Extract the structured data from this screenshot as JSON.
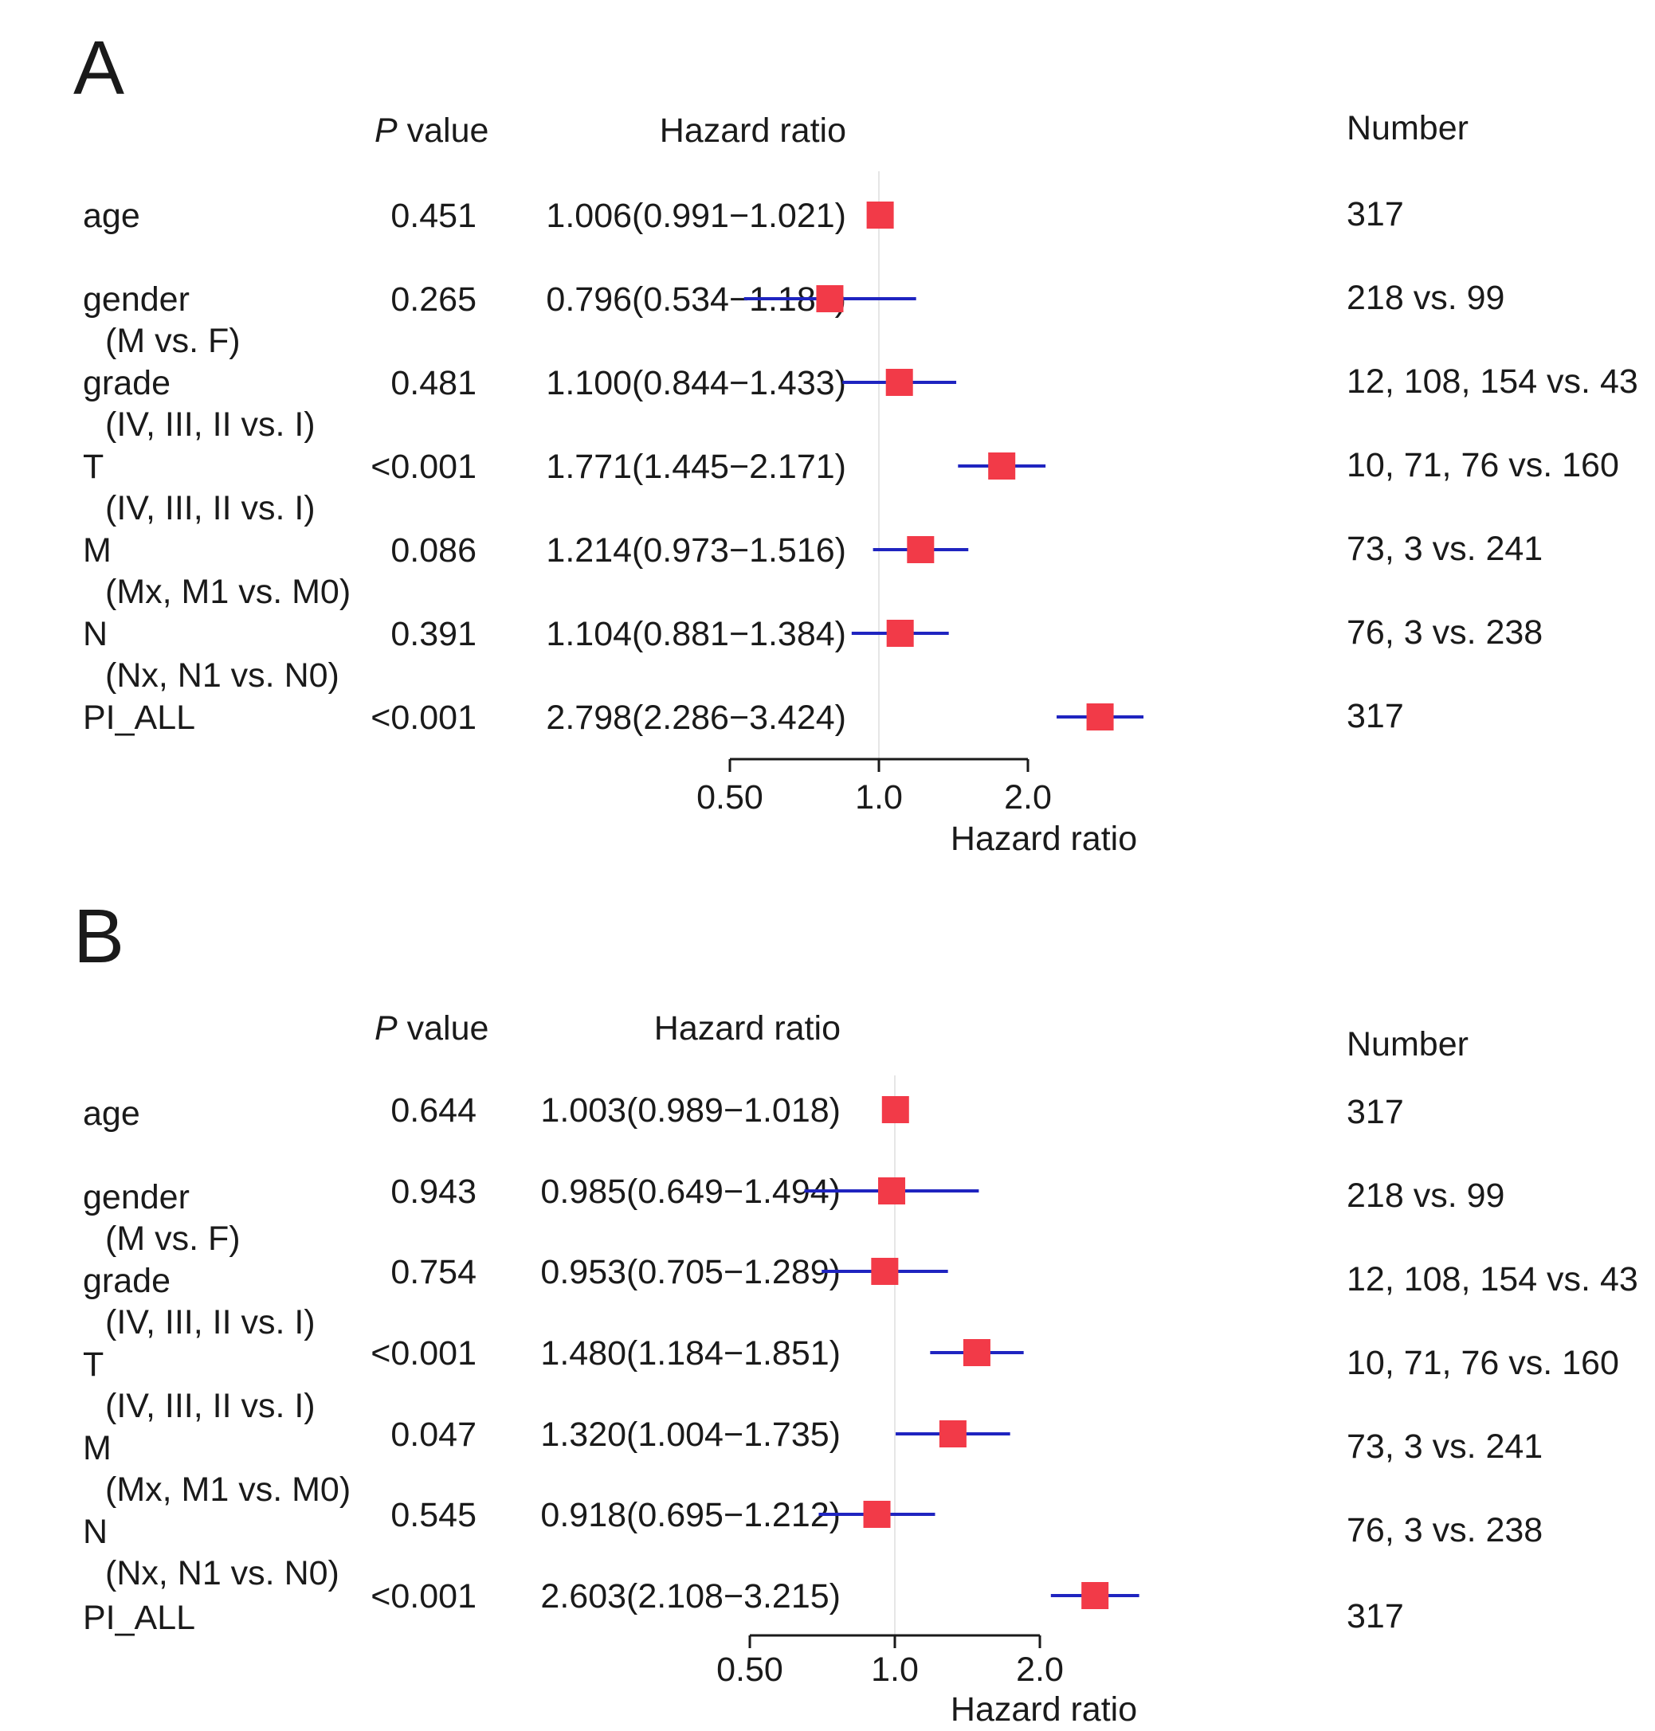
{
  "colors": {
    "marker": "#f23a48",
    "ci_line": "#1f24c0",
    "axis": "#1a1a1a",
    "ref_line": "#e6e6e6",
    "text": "#1a1a1a"
  },
  "chart_data": [
    {
      "type": "forest",
      "panel": "A",
      "columns": {
        "p_value": [
          "P",
          " value"
        ],
        "hazard_ratio": "Hazard ratio",
        "number": "Number"
      },
      "xlabel": "Hazard ratio",
      "x_scale": "log",
      "xticks": [
        0.5,
        1.0,
        2.0
      ],
      "xtick_labels": [
        "0.50",
        "1.0",
        "2.0"
      ],
      "reference": 1.0,
      "rows": [
        {
          "label": "age",
          "sublabel": "",
          "p": "0.451",
          "hr_text": "1.006(0.991−1.021)",
          "hr": 1.006,
          "lo": 0.991,
          "hi": 1.021,
          "number": "317"
        },
        {
          "label": "gender",
          "sublabel": "(M vs. F)",
          "p": "0.265",
          "hr_text": "0.796(0.534−1.189)",
          "hr": 0.796,
          "lo": 0.534,
          "hi": 1.189,
          "number": "218 vs. 99"
        },
        {
          "label": "grade",
          "sublabel": "(IV, III, II vs. I)",
          "p": "0.481",
          "hr_text": "1.100(0.844−1.433)",
          "hr": 1.1,
          "lo": 0.844,
          "hi": 1.433,
          "number": "12, 108, 154 vs. 43"
        },
        {
          "label": "T",
          "sublabel": "(IV, III, II vs. I)",
          "p": "<0.001",
          "hr_text": "1.771(1.445−2.171)",
          "hr": 1.771,
          "lo": 1.445,
          "hi": 2.171,
          "number": "10, 71, 76 vs. 160"
        },
        {
          "label": "M",
          "sublabel": "(Mx, M1 vs. M0)",
          "p": "0.086",
          "hr_text": "1.214(0.973−1.516)",
          "hr": 1.214,
          "lo": 0.973,
          "hi": 1.516,
          "number": "73, 3 vs. 241"
        },
        {
          "label": "N",
          "sublabel": "(Nx, N1 vs. N0)",
          "p": "0.391",
          "hr_text": "1.104(0.881−1.384)",
          "hr": 1.104,
          "lo": 0.881,
          "hi": 1.384,
          "number": "76, 3 vs. 238"
        },
        {
          "label": "PI_ALL",
          "sublabel": "",
          "p": "<0.001",
          "hr_text": "2.798(2.286−3.424)",
          "hr": 2.798,
          "lo": 2.286,
          "hi": 3.424,
          "number": "317"
        }
      ]
    },
    {
      "type": "forest",
      "panel": "B",
      "columns": {
        "p_value": [
          "P",
          " value"
        ],
        "hazard_ratio": "Hazard ratio",
        "number": "Number"
      },
      "xlabel": "Hazard ratio",
      "x_scale": "log",
      "xticks": [
        0.5,
        1.0,
        2.0
      ],
      "xtick_labels": [
        "0.50",
        "1.0",
        "2.0"
      ],
      "reference": 1.0,
      "rows": [
        {
          "label": "age",
          "sublabel": "",
          "p": "0.644",
          "hr_text": "1.003(0.989−1.018)",
          "hr": 1.003,
          "lo": 0.989,
          "hi": 1.018,
          "number": "317"
        },
        {
          "label": "gender",
          "sublabel": "(M vs. F)",
          "p": "0.943",
          "hr_text": "0.985(0.649−1.494)",
          "hr": 0.985,
          "lo": 0.649,
          "hi": 1.494,
          "number": "218 vs. 99"
        },
        {
          "label": "grade",
          "sublabel": "(IV, III, II vs. I)",
          "p": "0.754",
          "hr_text": "0.953(0.705−1.289)",
          "hr": 0.953,
          "lo": 0.705,
          "hi": 1.289,
          "number": "12, 108, 154 vs. 43"
        },
        {
          "label": "T",
          "sublabel": "(IV, III, II vs. I)",
          "p": "<0.001",
          "hr_text": "1.480(1.184−1.851)",
          "hr": 1.48,
          "lo": 1.184,
          "hi": 1.851,
          "number": "10, 71, 76 vs. 160"
        },
        {
          "label": "M",
          "sublabel": "(Mx, M1 vs. M0)",
          "p": "0.047",
          "hr_text": "1.320(1.004−1.735)",
          "hr": 1.32,
          "lo": 1.004,
          "hi": 1.735,
          "number": "73, 3 vs. 241"
        },
        {
          "label": "N",
          "sublabel": "(Nx, N1 vs. N0)",
          "p": "0.545",
          "hr_text": "0.918(0.695−1.212)",
          "hr": 0.918,
          "lo": 0.695,
          "hi": 1.212,
          "number": "76, 3 vs. 238"
        },
        {
          "label": "PI_ALL",
          "sublabel": "",
          "p": "<0.001",
          "hr_text": "2.603(2.108−3.215)",
          "hr": 2.603,
          "lo": 2.108,
          "hi": 3.215,
          "number": "317"
        }
      ]
    }
  ]
}
